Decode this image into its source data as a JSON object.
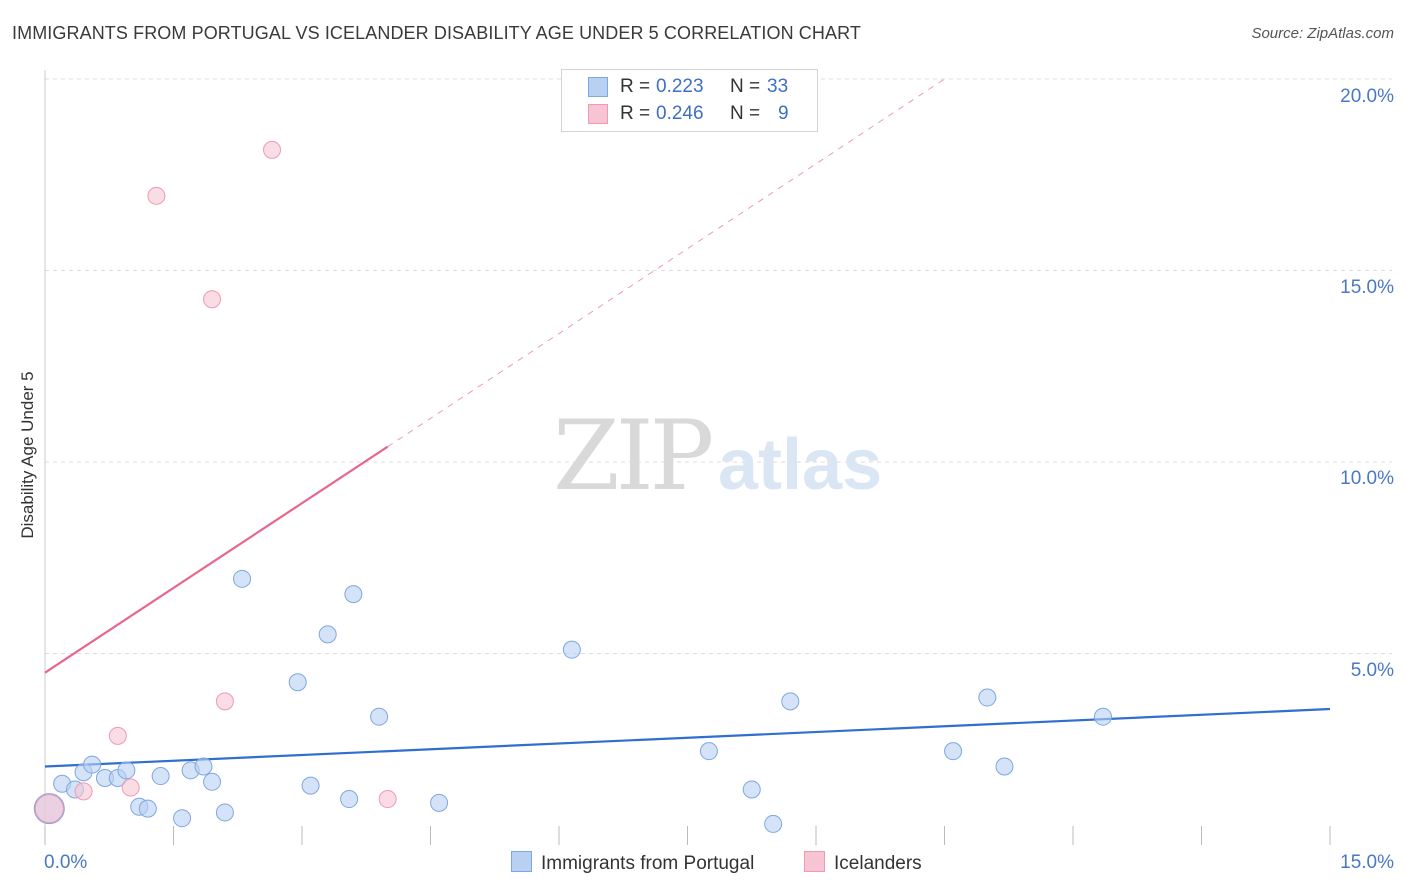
{
  "title": "IMMIGRANTS FROM PORTUGAL VS ICELANDER DISABILITY AGE UNDER 5 CORRELATION CHART",
  "source": "Source: ZipAtlas.com",
  "watermark": {
    "zip": "ZIP",
    "atlas": "atlas"
  },
  "legend": {
    "rows": [
      {
        "r_label": "R =",
        "r_value": "0.223",
        "n_label": "N =",
        "n_value": "33"
      },
      {
        "r_label": "R =",
        "r_value": "0.246",
        "n_label": "N =",
        "n_value": "9"
      }
    ]
  },
  "colors": {
    "blue_fill": "#b8d0f2",
    "blue_stroke": "#7fa7df",
    "blue_line": "#2f6fcf",
    "pink_fill": "#f6c4d3",
    "pink_stroke": "#ee9ab5",
    "pink_line": "#e8668c",
    "grid": "#dddddd",
    "tick_text": "#4a78c4"
  },
  "chart_data": {
    "type": "scatter",
    "title": "IMMIGRANTS FROM PORTUGAL VS ICELANDER DISABILITY AGE UNDER 5 CORRELATION CHART",
    "xlabel": "",
    "ylabel": "Disability Age Under 5",
    "xlim": [
      0,
      15
    ],
    "ylim": [
      0,
      20.5
    ],
    "x_tick_labels": [
      "0.0%",
      "15.0%"
    ],
    "y_ticks": [
      5,
      10,
      15,
      20
    ],
    "y_tick_labels": [
      "5.0%",
      "10.0%",
      "15.0%",
      "20.0%"
    ],
    "grid": true,
    "series": [
      {
        "name": "Immigrants from Portugal",
        "color": "blue",
        "points": [
          {
            "x": 0.05,
            "y": 0.95
          },
          {
            "x": 0.2,
            "y": 1.6
          },
          {
            "x": 0.35,
            "y": 1.45
          },
          {
            "x": 0.45,
            "y": 1.9
          },
          {
            "x": 0.55,
            "y": 2.1
          },
          {
            "x": 0.7,
            "y": 1.75
          },
          {
            "x": 0.85,
            "y": 1.75
          },
          {
            "x": 0.95,
            "y": 1.95
          },
          {
            "x": 1.1,
            "y": 1.0
          },
          {
            "x": 1.2,
            "y": 0.95
          },
          {
            "x": 1.35,
            "y": 1.8
          },
          {
            "x": 1.6,
            "y": 0.7
          },
          {
            "x": 1.7,
            "y": 1.95
          },
          {
            "x": 1.85,
            "y": 2.05
          },
          {
            "x": 1.95,
            "y": 1.65
          },
          {
            "x": 2.1,
            "y": 0.85
          },
          {
            "x": 2.3,
            "y": 6.95
          },
          {
            "x": 2.95,
            "y": 4.25
          },
          {
            "x": 3.1,
            "y": 1.55
          },
          {
            "x": 3.3,
            "y": 5.5
          },
          {
            "x": 3.55,
            "y": 1.2
          },
          {
            "x": 3.6,
            "y": 6.55
          },
          {
            "x": 3.9,
            "y": 3.35
          },
          {
            "x": 4.6,
            "y": 1.1
          },
          {
            "x": 6.15,
            "y": 5.1
          },
          {
            "x": 7.75,
            "y": 2.45
          },
          {
            "x": 8.25,
            "y": 1.45
          },
          {
            "x": 8.5,
            "y": 0.55
          },
          {
            "x": 8.7,
            "y": 3.75
          },
          {
            "x": 10.6,
            "y": 2.45
          },
          {
            "x": 11.0,
            "y": 3.85
          },
          {
            "x": 11.2,
            "y": 2.05
          },
          {
            "x": 12.35,
            "y": 3.35
          }
        ],
        "trend": {
          "x": [
            0,
            15
          ],
          "y": [
            2.05,
            3.55
          ]
        }
      },
      {
        "name": "Icelanders",
        "color": "pink",
        "points": [
          {
            "x": 0.05,
            "y": 0.95
          },
          {
            "x": 0.45,
            "y": 1.4
          },
          {
            "x": 0.85,
            "y": 2.85
          },
          {
            "x": 1.0,
            "y": 1.5
          },
          {
            "x": 1.3,
            "y": 16.95
          },
          {
            "x": 1.95,
            "y": 14.25
          },
          {
            "x": 2.1,
            "y": 3.75
          },
          {
            "x": 2.65,
            "y": 18.15
          },
          {
            "x": 4.0,
            "y": 1.2
          }
        ],
        "trend": {
          "x": [
            0,
            4.0
          ],
          "y": [
            4.5,
            10.4
          ]
        },
        "trend_extension": {
          "x": [
            4.0,
            10.5
          ],
          "y": [
            10.4,
            20.0
          ]
        }
      }
    ]
  }
}
